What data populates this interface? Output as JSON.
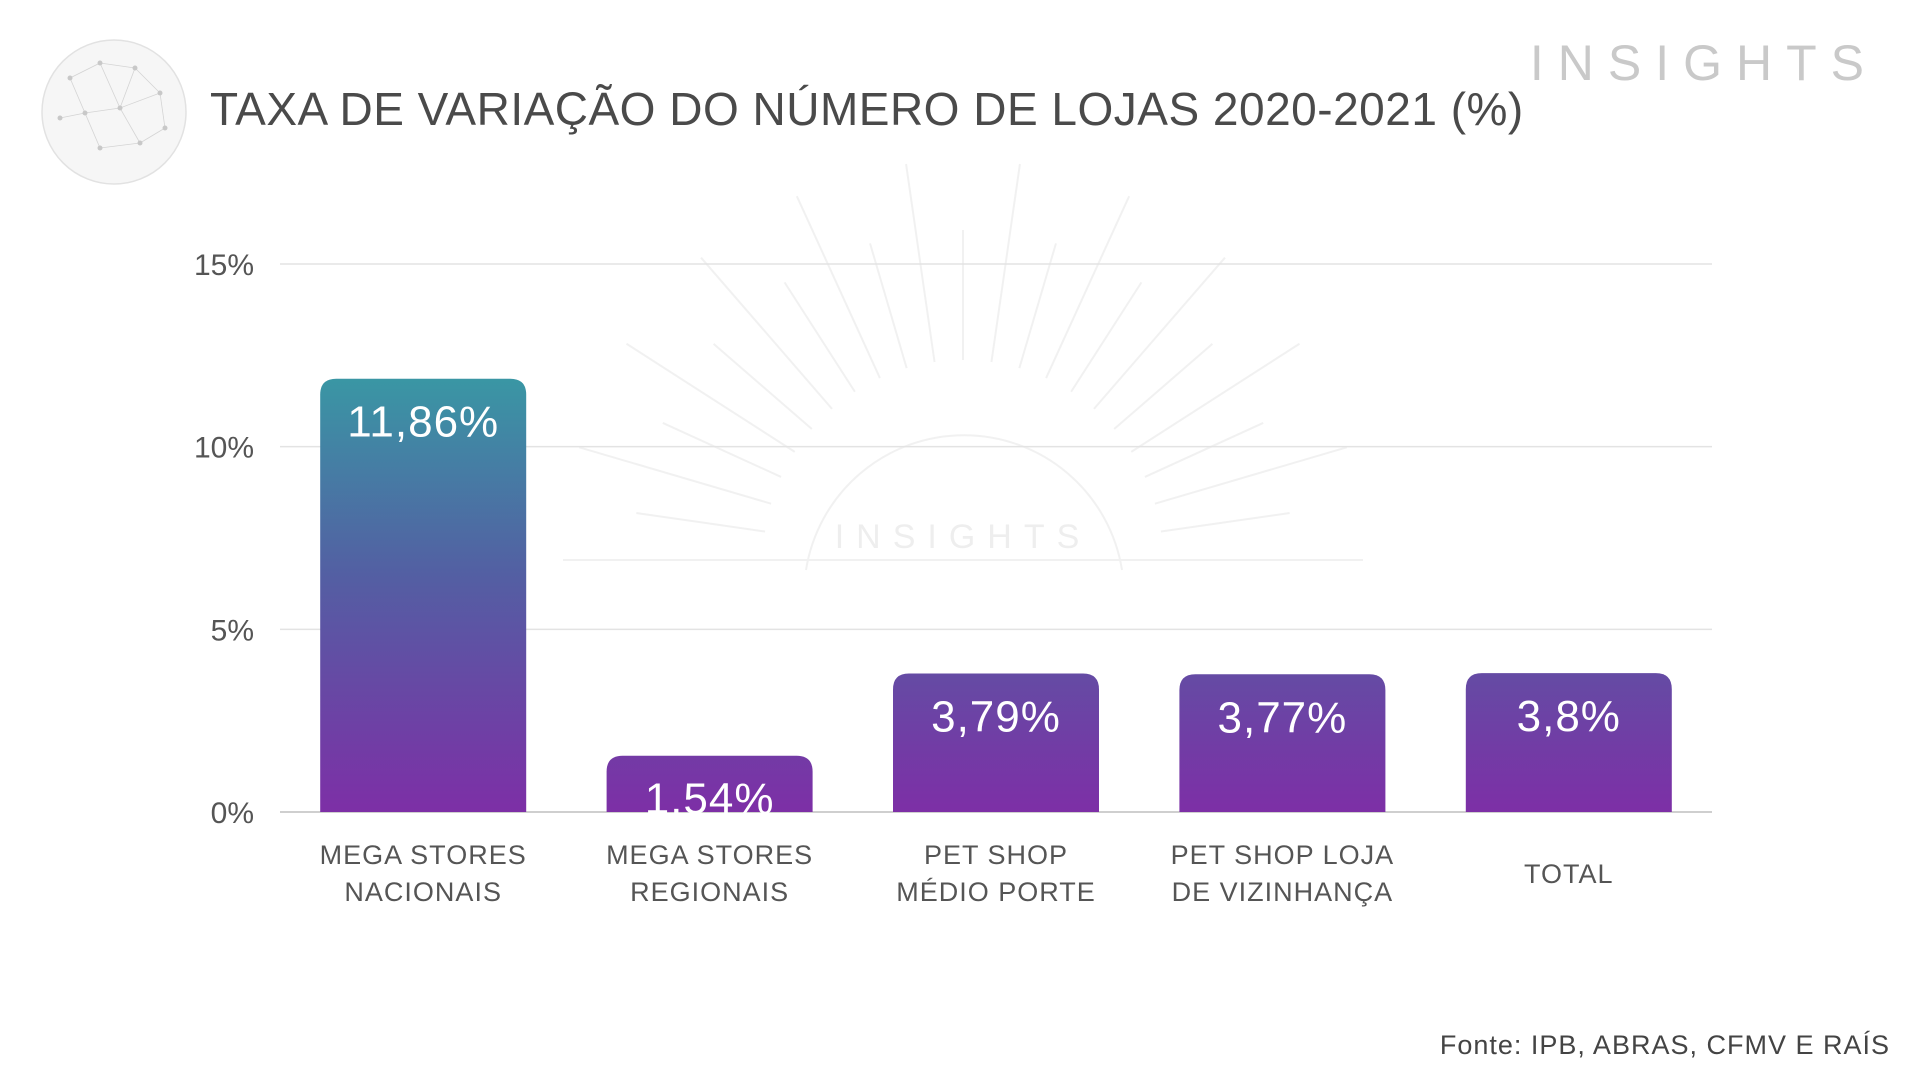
{
  "header": {
    "title": "TAXA DE VARIAÇÃO DO NÚMERO DE LOJAS 2020-2021 (%)",
    "brand": "INSIGHTS"
  },
  "watermark": {
    "text": "INSIGHTS"
  },
  "footer": {
    "source": "Fonte:  IPB, ABRAS, CFMV E RAÍS"
  },
  "colors": {
    "bar_top": "#3a96a4",
    "bar_mid": "#535fa3",
    "bar_bottom": "#7d2fa6",
    "grid": "#e3e3e3",
    "axis": "#bfbfbf"
  },
  "chart_data": {
    "type": "bar",
    "title": "TAXA DE VARIAÇÃO DO NÚMERO DE LOJAS 2020-2021 (%)",
    "categories": [
      [
        "MEGA STORES",
        "NACIONAIS"
      ],
      [
        "MEGA STORES",
        "REGIONAIS"
      ],
      [
        "PET SHOP",
        "MÉDIO PORTE"
      ],
      [
        "PET SHOP LOJA",
        "DE VIZINHANÇA"
      ],
      [
        "TOTAL"
      ]
    ],
    "values": [
      11.86,
      1.54,
      3.79,
      3.77,
      3.8
    ],
    "data_labels": [
      "11,86%",
      "1,54%",
      "3,79%",
      "3,77%",
      "3,8%"
    ],
    "yticks": [
      0,
      5,
      10,
      15
    ],
    "ytick_labels": [
      "0%",
      "5%",
      "10%",
      "15%"
    ],
    "ylim": [
      0,
      15
    ],
    "grid": true,
    "legend": "none"
  }
}
